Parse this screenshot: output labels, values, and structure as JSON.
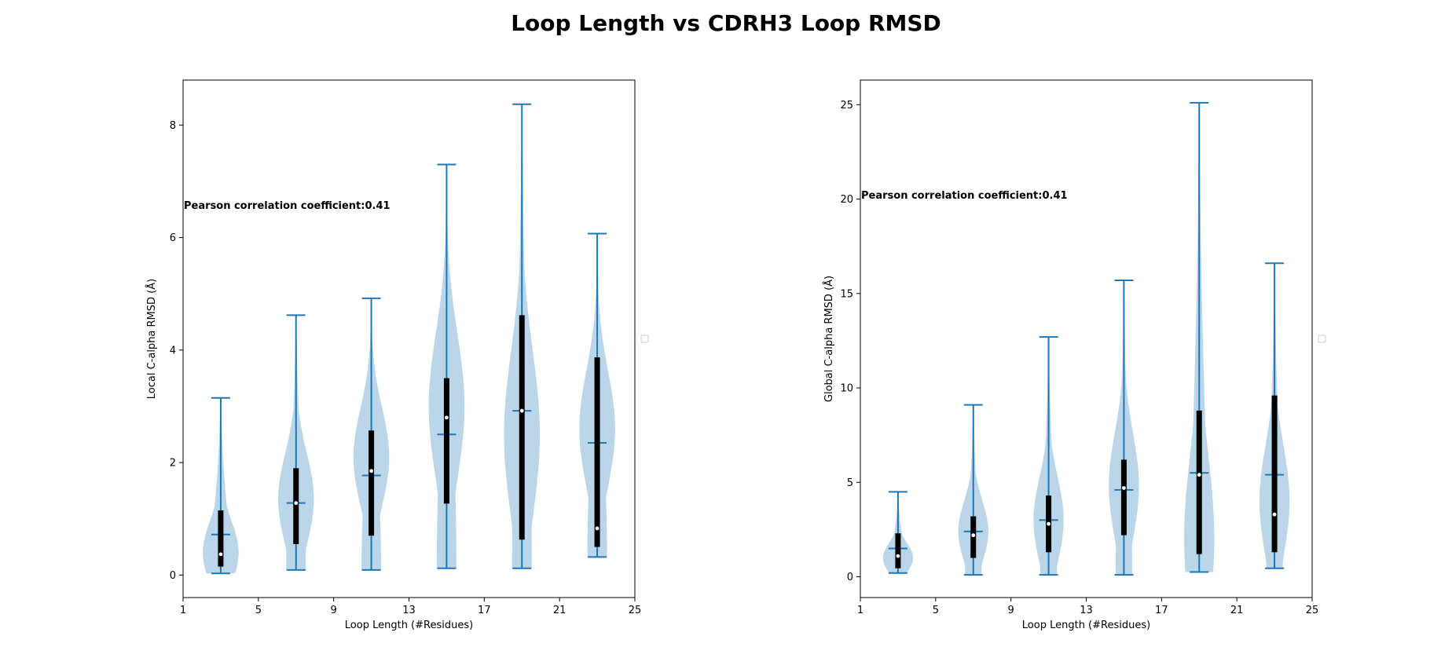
{
  "figure": {
    "title": "Loop Length vs CDRH3 Loop RMSD"
  },
  "colors": {
    "violin_fill": "#1f77b4",
    "violin_line": "#1f77b4",
    "box": "#000000",
    "median": "#ffffff"
  },
  "chart_data": [
    {
      "type": "violin",
      "xlabel": "Loop Length (#Residues)",
      "ylabel": "Local C-alpha RMSD (Å)",
      "xlim": [
        1,
        25
      ],
      "ylim": [
        -0.4,
        8.8
      ],
      "xticks": [
        1,
        5,
        9,
        13,
        17,
        21,
        25
      ],
      "yticks": [
        0,
        2,
        4,
        6,
        8
      ],
      "annotation": "Pearson correlation coefficient:0.41",
      "legend": "empty box at right edge",
      "violins": [
        {
          "x": 3,
          "min": 0.03,
          "max": 3.15,
          "mean": 0.72,
          "median": 0.37,
          "q1": 0.15,
          "q3": 1.15,
          "density_peak": 0.4,
          "max_halfwidth": 0.95
        },
        {
          "x": 7,
          "min": 0.09,
          "max": 4.62,
          "mean": 1.28,
          "median": 1.28,
          "q1": 0.55,
          "q3": 1.9,
          "density_peak": 1.35,
          "max_halfwidth": 0.95
        },
        {
          "x": 11,
          "min": 0.09,
          "max": 4.92,
          "mean": 1.77,
          "median": 1.85,
          "q1": 0.7,
          "q3": 2.57,
          "density_peak": 2.1,
          "max_halfwidth": 0.95
        },
        {
          "x": 15,
          "min": 0.12,
          "max": 7.3,
          "mean": 2.5,
          "median": 2.8,
          "q1": 1.27,
          "q3": 3.5,
          "density_peak": 3.0,
          "max_halfwidth": 0.95
        },
        {
          "x": 19,
          "min": 0.12,
          "max": 8.37,
          "mean": 2.92,
          "median": 2.92,
          "q1": 0.63,
          "q3": 4.62,
          "density_peak": 2.5,
          "max_halfwidth": 0.95
        },
        {
          "x": 23,
          "min": 0.32,
          "max": 6.07,
          "mean": 2.35,
          "median": 0.83,
          "q1": 0.5,
          "q3": 3.87,
          "density_peak": 2.6,
          "max_halfwidth": 0.95
        }
      ]
    },
    {
      "type": "violin",
      "xlabel": "Loop Length (#Residues)",
      "ylabel": "Global C-alpha RMSD (Å)",
      "xlim": [
        1,
        25
      ],
      "ylim": [
        -1.1,
        26.3
      ],
      "xticks": [
        1,
        5,
        9,
        13,
        17,
        21,
        25
      ],
      "yticks": [
        0,
        5,
        10,
        15,
        20,
        25
      ],
      "annotation": "Pearson correlation coefficient:0.41",
      "legend": "empty box at right edge",
      "violins": [
        {
          "x": 3,
          "min": 0.2,
          "max": 4.5,
          "mean": 1.5,
          "median": 1.1,
          "q1": 0.45,
          "q3": 2.3,
          "density_peak": 1.0,
          "max_halfwidth": 0.8
        },
        {
          "x": 7,
          "min": 0.1,
          "max": 9.1,
          "mean": 2.4,
          "median": 2.2,
          "q1": 1.0,
          "q3": 3.2,
          "density_peak": 2.4,
          "max_halfwidth": 0.8
        },
        {
          "x": 11,
          "min": 0.1,
          "max": 12.7,
          "mean": 3.0,
          "median": 2.8,
          "q1": 1.3,
          "q3": 4.3,
          "density_peak": 3.0,
          "max_halfwidth": 0.8
        },
        {
          "x": 15,
          "min": 0.1,
          "max": 15.7,
          "mean": 4.6,
          "median": 4.7,
          "q1": 2.2,
          "q3": 6.2,
          "density_peak": 4.8,
          "max_halfwidth": 0.8
        },
        {
          "x": 19,
          "min": 0.25,
          "max": 25.1,
          "mean": 5.5,
          "median": 5.4,
          "q1": 1.2,
          "q3": 8.8,
          "density_peak": 2.0,
          "max_halfwidth": 0.8
        },
        {
          "x": 23,
          "min": 0.45,
          "max": 16.6,
          "mean": 5.4,
          "median": 3.3,
          "q1": 1.3,
          "q3": 9.6,
          "density_peak": 4.0,
          "max_halfwidth": 0.8
        }
      ]
    }
  ]
}
